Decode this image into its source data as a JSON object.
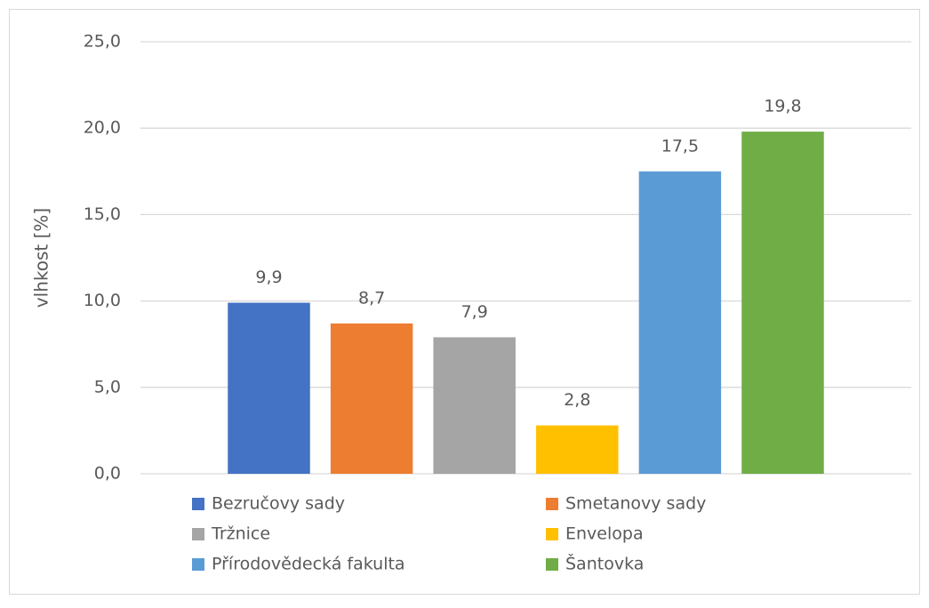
{
  "chart_data": {
    "type": "bar",
    "y_label": "vlhkost [%]",
    "categories": [
      null
    ],
    "series": [
      {
        "name": "Bezručovy sady",
        "color": "#4472c4",
        "values": [
          9.9
        ],
        "value_labels": [
          "9,9"
        ]
      },
      {
        "name": "Smetanovy sady",
        "color": "#ed7d31",
        "values": [
          8.7
        ],
        "value_labels": [
          "8,7"
        ]
      },
      {
        "name": "Tržnice",
        "color": "#a5a5a5",
        "values": [
          7.9
        ],
        "value_labels": [
          "7,9"
        ]
      },
      {
        "name": "Envelopa",
        "color": "#ffc000",
        "values": [
          2.8
        ],
        "value_labels": [
          "2,8"
        ]
      },
      {
        "name": "Přírodovědecká fakulta",
        "color": "#5b9bd5",
        "values": [
          17.5
        ],
        "value_labels": [
          "17,5"
        ]
      },
      {
        "name": "Šantovka",
        "color": "#70ad47",
        "values": [
          19.8
        ],
        "value_labels": [
          "19,8"
        ]
      }
    ],
    "ylim": [
      0,
      25
    ],
    "yticks": [
      {
        "value": 0,
        "label": "0,0"
      },
      {
        "value": 5,
        "label": "5,0"
      },
      {
        "value": 10,
        "label": "10,0"
      },
      {
        "value": 15,
        "label": "15,0"
      },
      {
        "value": 20,
        "label": "20,0"
      },
      {
        "value": 25,
        "label": "25,0"
      }
    ],
    "grid": true,
    "legend": "bottom"
  }
}
